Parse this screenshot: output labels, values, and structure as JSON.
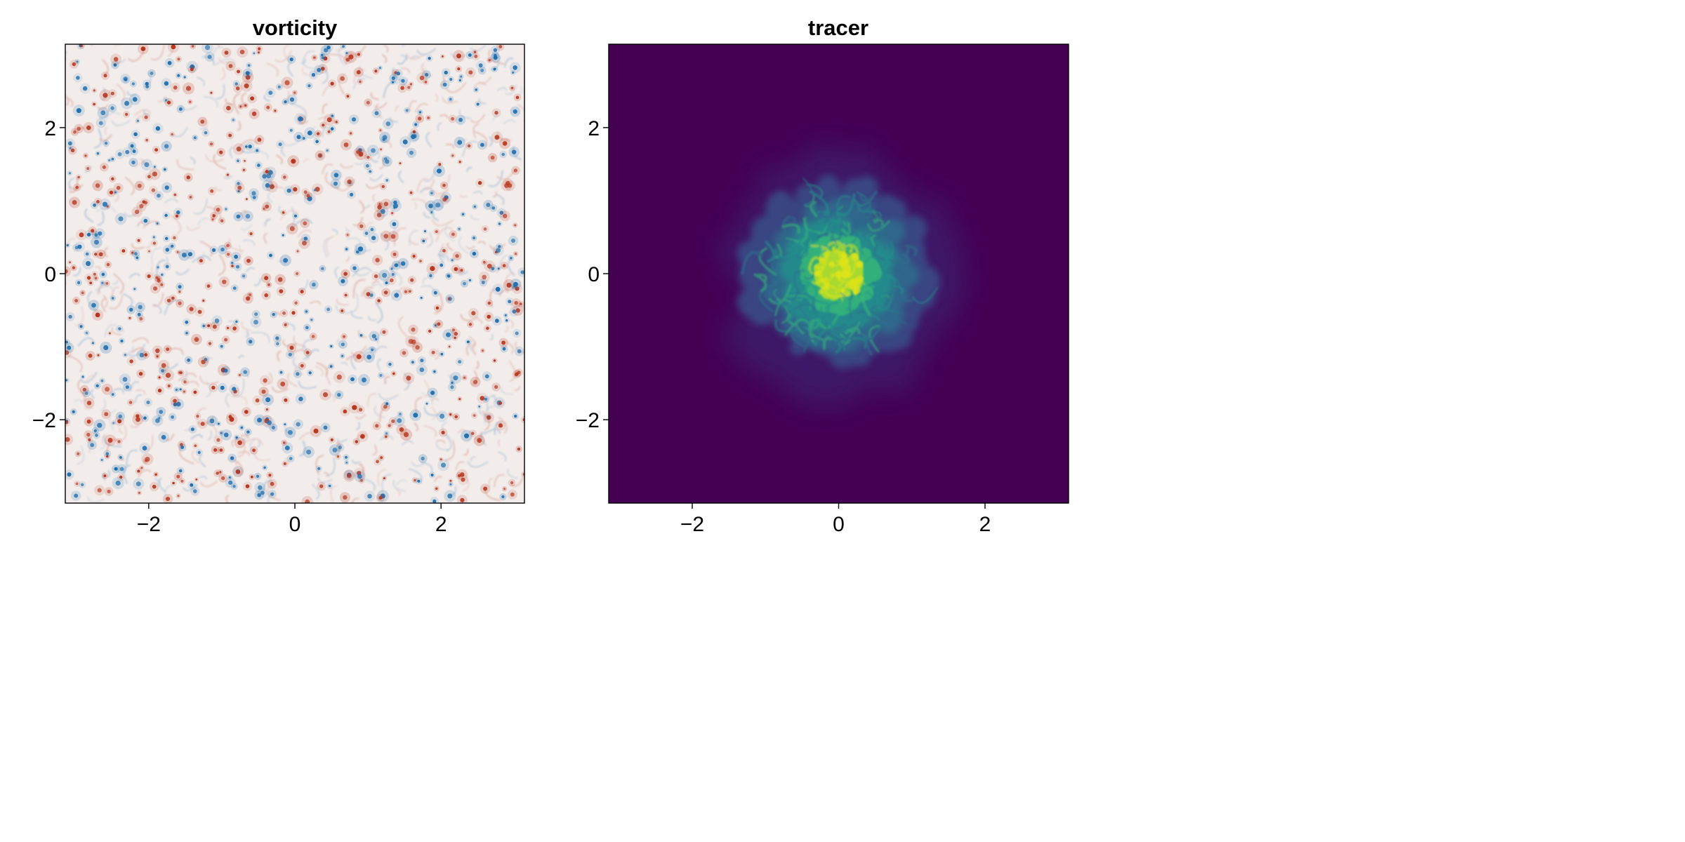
{
  "chart_data": [
    {
      "type": "heatmap",
      "title": "vorticity",
      "xlim": [
        -3.14159,
        3.14159
      ],
      "ylim": [
        -3.14159,
        3.14159
      ],
      "xticks": [
        -2,
        0,
        2
      ],
      "yticks": [
        -2,
        0,
        2
      ],
      "xticklabels": [
        "−2",
        "0",
        "2"
      ],
      "yticklabels": [
        "−2",
        "0",
        "2"
      ],
      "colormap": "balance",
      "colors": {
        "negative": "#1f6fb0",
        "zero": "#f2ecea",
        "positive": "#b8361e"
      },
      "grid": false
    },
    {
      "type": "heatmap",
      "title": "tracer",
      "xlim": [
        -3.14159,
        3.14159
      ],
      "ylim": [
        -3.14159,
        3.14159
      ],
      "xticks": [
        -2,
        0,
        2
      ],
      "yticks": [
        -2,
        0,
        2
      ],
      "xticklabels": [
        "−2",
        "0",
        "2"
      ],
      "yticklabels": [
        "−2",
        "0",
        "2"
      ],
      "colormap": "viridis",
      "colors": {
        "background": "#440154",
        "mid": "#21908c",
        "high": "#dde318"
      },
      "blob_center": [
        0.0,
        0.0
      ],
      "grid": false
    }
  ]
}
